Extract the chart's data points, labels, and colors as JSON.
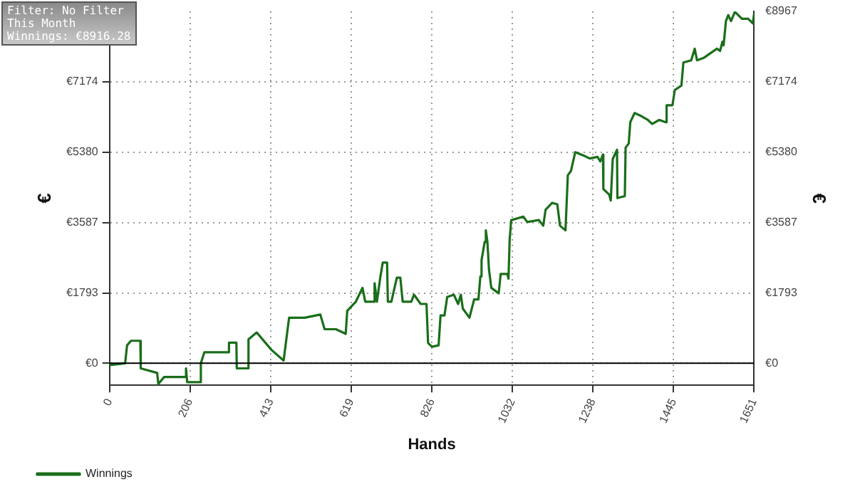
{
  "chart_data": {
    "type": "line",
    "xlabel": "Hands",
    "ylabel": "€",
    "y2label": "€",
    "annotations": [
      "Filter: No Filter",
      "This Month",
      "Winnings: €8916.28"
    ],
    "xlim": [
      0,
      1651
    ],
    "xticks": [
      0,
      206,
      413,
      619,
      826,
      1032,
      1238,
      1445,
      1651
    ],
    "ylim": [
      -560,
      8967
    ],
    "yticks": [
      {
        "value": 0,
        "label": "€0"
      },
      {
        "value": 1793,
        "label": "€1793"
      },
      {
        "value": 3587,
        "label": "€3587"
      },
      {
        "value": 5380,
        "label": "€5380"
      },
      {
        "value": 7174,
        "label": "€7174"
      }
    ],
    "y2lim": [
      -560,
      8967
    ],
    "y2ticks": [
      {
        "value": 0,
        "label": "€0"
      },
      {
        "value": 1793,
        "label": "€1793"
      },
      {
        "value": 3587,
        "label": "€3587"
      },
      {
        "value": 5380,
        "label": "€5380"
      },
      {
        "value": 7174,
        "label": "€7174"
      },
      {
        "value": 8967,
        "label": "€8967"
      }
    ],
    "grid": true,
    "legend": "bottom left",
    "marker": "none",
    "line_style": "solid",
    "ref_lines": [
      {
        "axis": "y",
        "value": 0,
        "color": "#000000",
        "line_style": "solid"
      }
    ],
    "series": [
      {
        "name": "Winnings",
        "color": "#1a6e1a",
        "x": [
          0,
          1,
          40,
          45,
          55,
          79,
          80,
          122,
          125,
          140,
          195,
          196,
          199,
          233,
          234,
          243,
          305,
          306,
          325,
          326,
          355,
          356,
          377,
          415,
          446,
          460,
          500,
          540,
          551,
          580,
          605,
          609,
          631,
          648,
          655,
          677,
          679,
          685,
          694,
          700,
          711,
          713,
          722,
          736,
          745,
          751,
          773,
          780,
          797,
          812,
          816,
          826,
          843,
          848,
          858,
          865,
          882,
          893,
          900,
          905,
          922,
          934,
          945,
          950,
          953,
          961,
          964,
          968,
          972,
          978,
          997,
          1002,
          1019,
          1022,
          1025,
          1029,
          1060,
          1070,
          1100,
          1111,
          1117,
          1134,
          1147,
          1154,
          1168,
          1174,
          1182,
          1193,
          1213,
          1230,
          1250,
          1257,
          1264,
          1265,
          1280,
          1284,
          1289,
          1300,
          1301,
          1320,
          1322,
          1330,
          1334,
          1345,
          1362,
          1379,
          1390,
          1408,
          1425,
          1427,
          1442,
          1448,
          1465,
          1470,
          1490,
          1499,
          1505,
          1522,
          1539,
          1556,
          1564,
          1570,
          1573,
          1579,
          1585,
          1592,
          1602,
          1620,
          1636,
          1648,
          1651
        ],
        "values": [
          0,
          -45,
          0,
          457,
          573,
          573,
          -130,
          -246,
          -527,
          -350,
          -350,
          -130,
          -480,
          -480,
          0,
          281,
          281,
          527,
          527,
          -130,
          -130,
          610,
          785,
          340,
          70,
          1160,
          1160,
          1242,
          868,
          868,
          750,
          1336,
          1570,
          1922,
          1570,
          1570,
          2039,
          1570,
          2215,
          2566,
          2566,
          1570,
          1570,
          2180,
          2180,
          1570,
          1570,
          1747,
          1512,
          1512,
          516,
          422,
          457,
          1219,
          1219,
          1688,
          1747,
          1512,
          1747,
          1394,
          1160,
          1629,
          1629,
          2215,
          2625,
          3094,
          3387,
          3094,
          2391,
          1922,
          1782,
          2275,
          2275,
          2156,
          3154,
          3646,
          3738,
          3600,
          3650,
          3505,
          3913,
          4089,
          4050,
          3505,
          3387,
          4792,
          4900,
          5380,
          5300,
          5220,
          5260,
          5144,
          5320,
          4441,
          4300,
          4149,
          5204,
          5439,
          4209,
          4260,
          5496,
          5600,
          6143,
          6377,
          6300,
          6201,
          6100,
          6201,
          6143,
          6575,
          6575,
          6962,
          7078,
          7665,
          7720,
          8016,
          7720,
          7782,
          7900,
          8016,
          7960,
          8193,
          8100,
          8720,
          8873,
          8720,
          8955,
          8780,
          8780,
          8662,
          8896
        ]
      }
    ]
  }
}
